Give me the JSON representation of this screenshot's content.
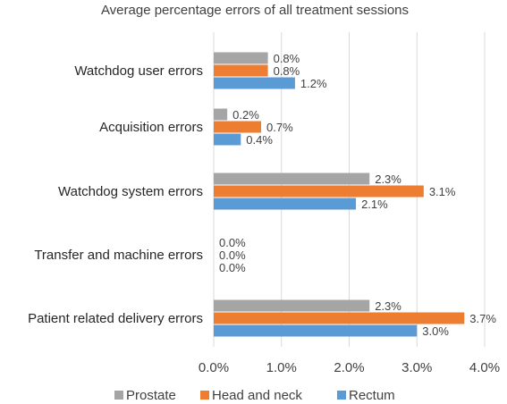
{
  "chart_data": {
    "type": "bar",
    "orientation": "horizontal",
    "title": "Average percentage errors of all treatment sessions",
    "categories": [
      "Watchdog user errors",
      "Acquisition errors",
      "Watchdog system errors",
      "Transfer and machine errors",
      "Patient related delivery errors"
    ],
    "series": [
      {
        "name": "Prostate",
        "color": "#a5a5a5",
        "values": [
          0.8,
          0.2,
          2.3,
          0.0,
          2.3
        ],
        "labels": [
          "0.8%",
          "0.2%",
          "2.3%",
          "0.0%",
          "2.3%"
        ]
      },
      {
        "name": "Head and neck",
        "color": "#ed7d31",
        "values": [
          0.8,
          0.7,
          3.1,
          0.0,
          3.7
        ],
        "labels": [
          "0.8%",
          "0.7%",
          "3.1%",
          "0.0%",
          "3.7%"
        ]
      },
      {
        "name": "Rectum",
        "color": "#5b9bd5",
        "values": [
          1.2,
          0.4,
          2.1,
          0.0,
          3.0
        ],
        "labels": [
          "1.2%",
          "0.4%",
          "2.1%",
          "0.0%",
          "3.0%"
        ]
      }
    ],
    "xlim": [
      0,
      4.0
    ],
    "xticks": [
      "0.0%",
      "1.0%",
      "2.0%",
      "3.0%",
      "4.0%"
    ],
    "grid": "vertical",
    "legend": "bottom"
  }
}
